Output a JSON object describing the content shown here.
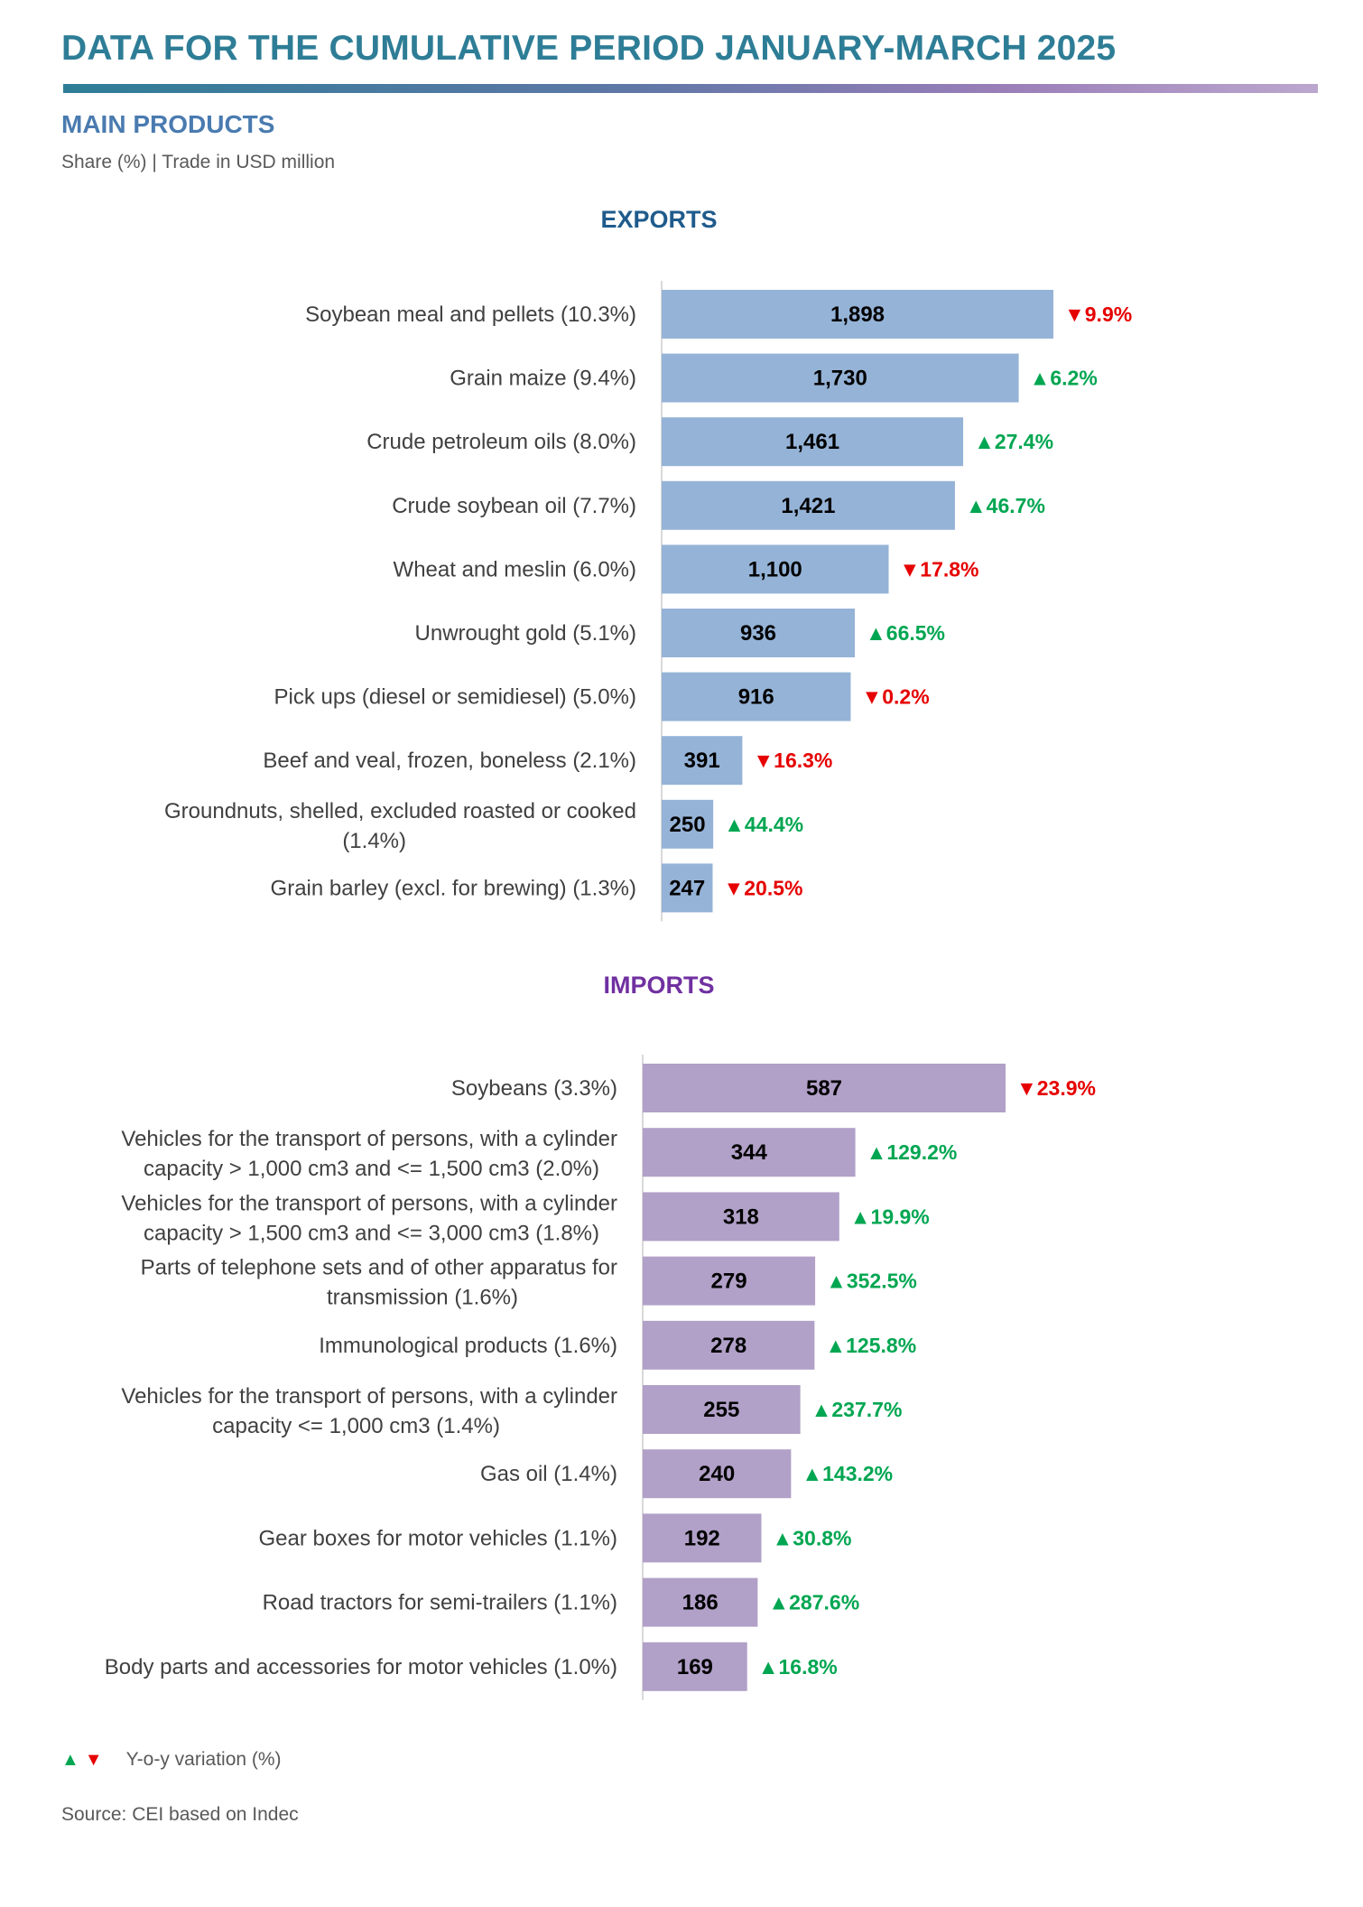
{
  "header": {
    "title": "DATA FOR THE CUMULATIVE PERIOD JANUARY-MARCH 2025",
    "section_title": "MAIN PRODUCTS",
    "subtitle": "Share (%) | Trade in USD million"
  },
  "colors": {
    "title": "#2E7D96",
    "section": "#4A7BB0",
    "exports_bar": "#95B3D7",
    "imports_bar": "#B1A0C7",
    "exports_title": "#1F5B8C",
    "imports_title": "#7030A0",
    "up": "#00A651",
    "down": "#E60000"
  },
  "chart_data": [
    {
      "type": "bar",
      "orientation": "horizontal",
      "title": "EXPORTS",
      "categories": [
        [
          "Soybean meal and pellets (10.3%)"
        ],
        [
          "Grain maize (9.4%)"
        ],
        [
          "Crude petroleum oils (8.0%)"
        ],
        [
          "Crude soybean oil (7.7%)"
        ],
        [
          "Wheat and meslin (6.0%)"
        ],
        [
          "Unwrought gold (5.1%)"
        ],
        [
          "Pick ups (diesel or semidiesel) (5.0%)"
        ],
        [
          "Beef and veal, frozen, boneless (2.1%)"
        ],
        [
          "Groundnuts, shelled, excluded roasted or cooked",
          "(1.4%)"
        ],
        [
          "Grain barley (excl. for brewing) (1.3%)"
        ]
      ],
      "values": [
        1898,
        1730,
        1461,
        1421,
        1100,
        936,
        916,
        391,
        250,
        247
      ],
      "value_labels": [
        "1,898",
        "1,730",
        "1,461",
        "1,421",
        "1,100",
        "936",
        "916",
        "391",
        "250",
        "247"
      ],
      "yoy_variation": [
        -9.9,
        6.2,
        27.4,
        46.7,
        -17.8,
        66.5,
        -0.2,
        -16.3,
        44.4,
        -20.5
      ],
      "yoy_labels": [
        "9.9%",
        "6.2%",
        "27.4%",
        "46.7%",
        "17.8%",
        "66.5%",
        "0.2%",
        "16.3%",
        "44.4%",
        "20.5%"
      ],
      "xlim": [
        0,
        1898
      ]
    },
    {
      "type": "bar",
      "orientation": "horizontal",
      "title": "IMPORTS",
      "categories": [
        [
          "Soybeans (3.3%)"
        ],
        [
          "Vehicles for the transport of persons, with a cylinder",
          "capacity > 1,000 cm3 and <= 1,500 cm3 (2.0%)"
        ],
        [
          "Vehicles for the transport of persons, with a cylinder",
          "capacity > 1,500 cm3 and <= 3,000 cm3 (1.8%)"
        ],
        [
          "Parts of telephone sets and of other apparatus for",
          "transmission (1.6%)"
        ],
        [
          "Immunological products (1.6%)"
        ],
        [
          "Vehicles for the transport of persons, with a cylinder",
          "capacity <= 1,000 cm3 (1.4%)"
        ],
        [
          "Gas oil  (1.4%)"
        ],
        [
          "Gear boxes for motor vehicles  (1.1%)"
        ],
        [
          "Road tractors for semi-trailers (1.1%)"
        ],
        [
          "Body parts and accessories for motor vehicles (1.0%)"
        ]
      ],
      "values": [
        587,
        344,
        318,
        279,
        278,
        255,
        240,
        192,
        186,
        169
      ],
      "value_labels": [
        "587",
        "344",
        "318",
        "279",
        "278",
        "255",
        "240",
        "192",
        "186",
        "169"
      ],
      "yoy_variation": [
        -23.9,
        129.2,
        19.9,
        352.5,
        125.8,
        237.7,
        143.2,
        30.8,
        287.6,
        16.8
      ],
      "yoy_labels": [
        "23.9%",
        "129.2%",
        "19.9%",
        "352.5%",
        "125.8%",
        "237.7%",
        "143.2%",
        "30.8%",
        "287.6%",
        "16.8%"
      ],
      "xlim": [
        0,
        587
      ]
    }
  ],
  "legend": {
    "up_arrow": "▲",
    "down_arrow": "▼",
    "label": "Y-o-y variation (%)"
  },
  "source": "Source: CEI based on Indec"
}
